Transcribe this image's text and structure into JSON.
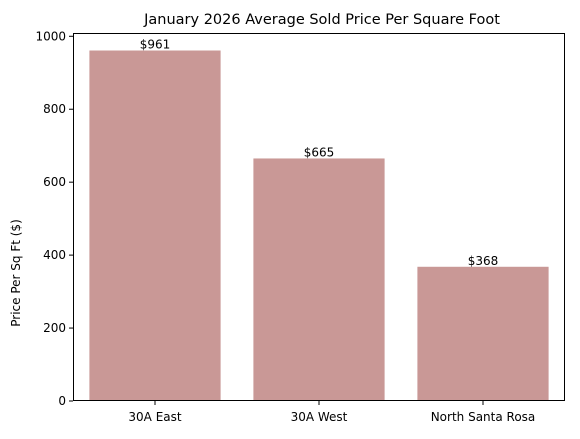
{
  "chart_data": {
    "type": "bar",
    "title": "January 2026 Average Sold Price Per Square Foot",
    "xlabel": "",
    "ylabel": "Price Per Sq Ft ($)",
    "categories": [
      "30A East",
      "30A West",
      "North Santa Rosa"
    ],
    "values": [
      961,
      665,
      368
    ],
    "data_labels": [
      "$961",
      "$665",
      "$368"
    ],
    "yticks": [
      0,
      200,
      400,
      600,
      800,
      1000
    ],
    "ylim": [
      0,
      1009
    ],
    "grid": false,
    "legend": "none",
    "bar_color": "#c99896"
  }
}
